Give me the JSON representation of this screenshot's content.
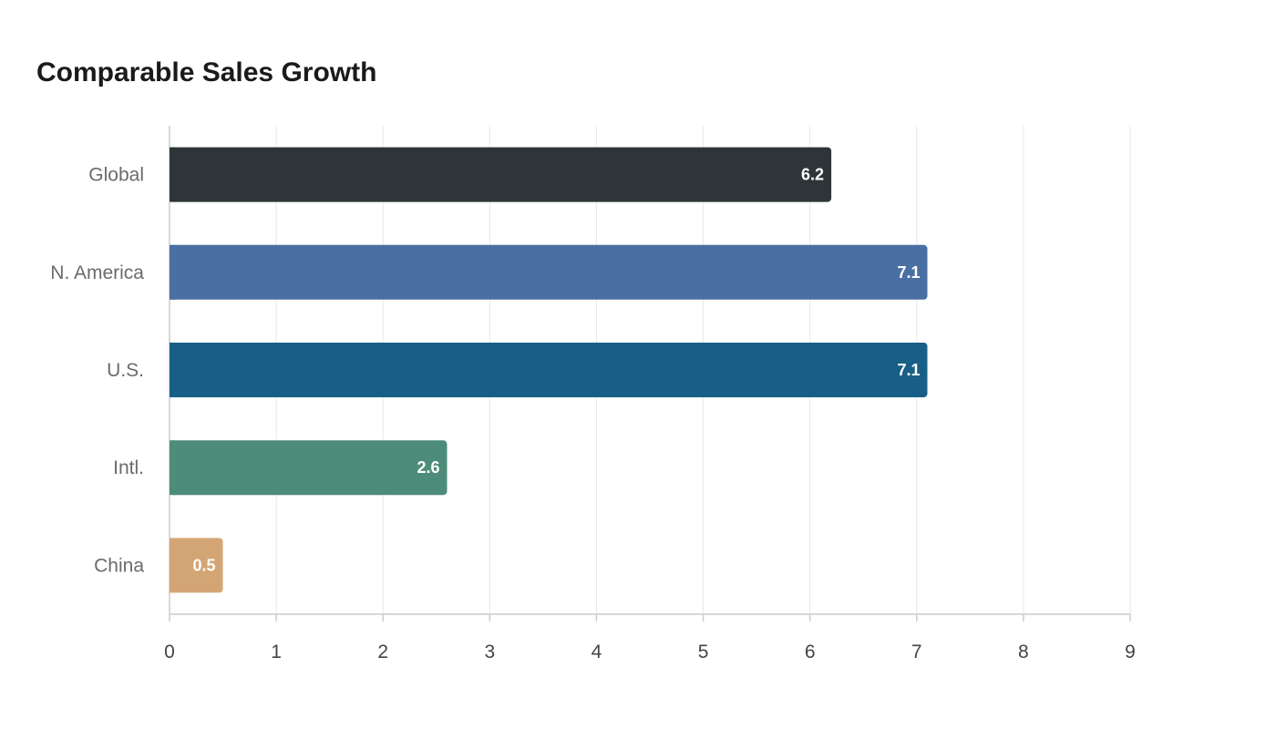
{
  "chart_data": {
    "type": "bar",
    "orientation": "horizontal",
    "title": "Comparable Sales Growth",
    "xlabel": "",
    "ylabel": "",
    "categories": [
      "Global",
      "N. America",
      "U.S.",
      "Intl.",
      "China"
    ],
    "values": [
      6.2,
      7.1,
      7.1,
      2.6,
      0.5
    ],
    "colors": [
      "#2e3538",
      "#4a6fa3",
      "#185f87",
      "#4e8c7a",
      "#d4a574"
    ],
    "xlim": [
      0,
      9
    ],
    "xticks": [
      0,
      1,
      2,
      3,
      4,
      5,
      6,
      7,
      8,
      9
    ],
    "grid": true,
    "legend": "none"
  }
}
